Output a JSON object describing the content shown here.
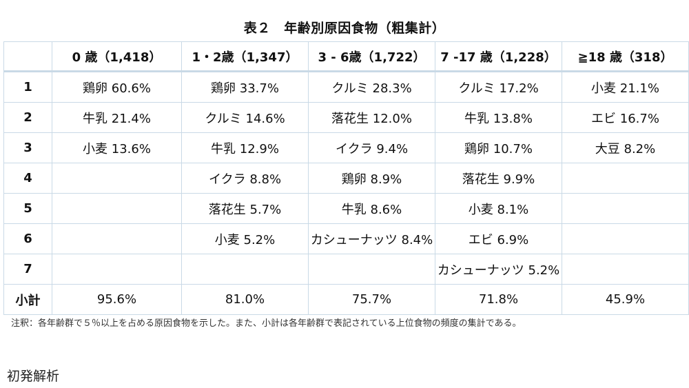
{
  "title": "表２　年齢別原因食物（粗集計）",
  "header": [
    "",
    "0 歳（1,418）",
    "1・2歳（1,347）",
    "3 - 6歳（1,722）",
    "7 -17 歳（1,228）",
    "≧18 歳（318）"
  ],
  "rows": [
    [
      "1",
      "鶏卵  60.6%",
      "鶏卵  33.7%",
      "クルミ  28.3%",
      "クルミ  17.2%",
      "小麦  21.1%"
    ],
    [
      "2",
      "牛乳  21.4%",
      "クルミ  14.6%",
      "落花生  12.0%",
      "牛乳  13.8%",
      "エビ  16.7%"
    ],
    [
      "3",
      "小麦  13.6%",
      "牛乳  12.9%",
      "イクラ  9.4%",
      "鶏卵  10.7%",
      "大豆  8.2%"
    ],
    [
      "4",
      "",
      "イクラ  8.8%",
      "鶏卵  8.9%",
      "落花生  9.9%",
      ""
    ],
    [
      "5",
      "",
      "落花生  5.7%",
      "牛乳  8.6%",
      "小麦  8.1%",
      ""
    ],
    [
      "6",
      "",
      "小麦  5.2%",
      "カシューナッツ  8.4%",
      "エビ  6.9%",
      ""
    ],
    [
      "7",
      "",
      "",
      "",
      "カシューナッツ  5.2%",
      ""
    ]
  ],
  "subtotal": [
    "小計",
    "95.6%",
    "81.0%",
    "75.7%",
    "71.8%",
    "45.9%"
  ],
  "note": "注釈：各年齢群で５％以上を占める原因食物を示した。また、小計は各年齢群で表記されている上位食物の頻度の集計である。",
  "footer": "初発解析"
}
